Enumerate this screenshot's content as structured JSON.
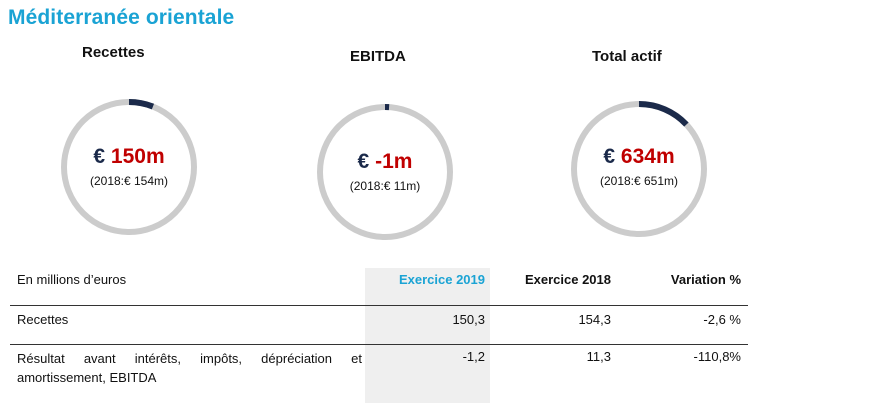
{
  "title": "Méditerranée orientale",
  "kpis": [
    {
      "label": "Recettes",
      "currency": "€",
      "value": "150m",
      "previous": "(2018:€ 154m)",
      "accent": "#1b2a4a",
      "ring": "#cccccc",
      "fraction": 0.06
    },
    {
      "label": "EBITDA",
      "currency": "€",
      "value": "-1m",
      "previous": "(2018:€ 11m)",
      "accent": "#1b2a4a",
      "ring": "#cccccc",
      "fraction": 0.01
    },
    {
      "label": "Total actif",
      "currency": "€",
      "value": "634m",
      "previous": "(2018:€ 651m)",
      "accent": "#1b2a4a",
      "ring": "#cccccc",
      "fraction": 0.13
    }
  ],
  "table": {
    "unit_label": "En millions d’euros",
    "headers": [
      "Exercice  2019",
      "Exercice  2018",
      "Variation %"
    ],
    "rows": [
      {
        "label": "Recettes",
        "v2019": "150,3",
        "v2018": "154,3",
        "variation": "-2,6 %"
      },
      {
        "label": "Résultat avant intérêts, impôts, dépréciation et amortissement, EBITDA",
        "v2019": "-1,2",
        "v2018": "11,3",
        "variation": "-110,8%"
      }
    ]
  },
  "colors": {
    "title": "#1aa3d4",
    "header_2019": "#1aa3d4",
    "value_red": "#c00000",
    "currency_navy": "#1b2a4a",
    "highlight_column": "#efefef"
  }
}
